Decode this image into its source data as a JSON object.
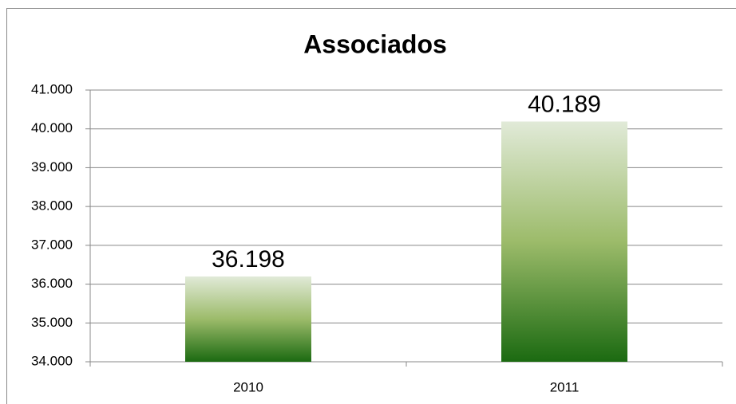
{
  "chart_data": {
    "type": "bar",
    "title": "Associados",
    "categories": [
      "2010",
      "2011"
    ],
    "values": [
      36198,
      40189
    ],
    "value_labels": [
      "36.198",
      "40.189"
    ],
    "gradient": [
      "#e1ead8",
      "#9cbb6a",
      "#1b6a11"
    ],
    "ylim": [
      34000,
      41000
    ],
    "yticks": [
      {
        "value": 34000,
        "label": "34.000"
      },
      {
        "value": 35000,
        "label": "35.000"
      },
      {
        "value": 36000,
        "label": "36.000"
      },
      {
        "value": 37000,
        "label": "37.000"
      },
      {
        "value": 38000,
        "label": "38.000"
      },
      {
        "value": 39000,
        "label": "39.000"
      },
      {
        "value": 40000,
        "label": "40.000"
      },
      {
        "value": 41000,
        "label": "41.000"
      }
    ],
    "grid": true
  }
}
